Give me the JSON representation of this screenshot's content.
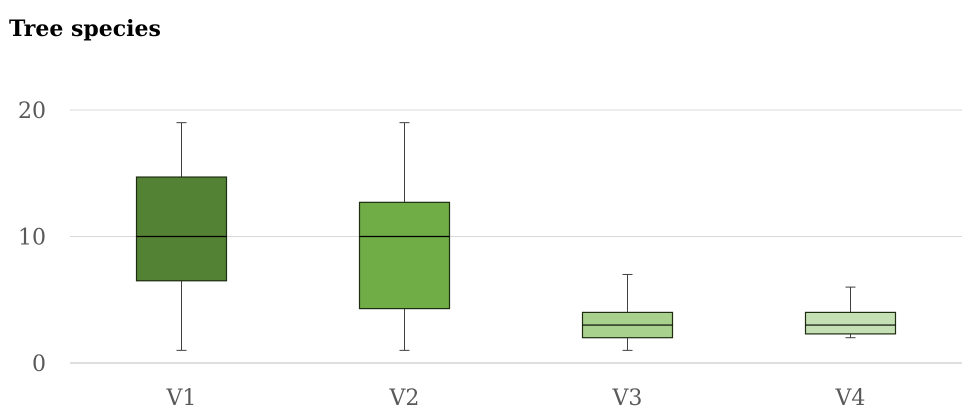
{
  "chart_data": {
    "type": "boxplot",
    "title": "Tree species",
    "xlabel": "",
    "ylabel": "",
    "ylim": [
      0,
      20
    ],
    "yticks": [
      0,
      10,
      20
    ],
    "grid": true,
    "legend": "none",
    "categories": [
      "V1",
      "V2",
      "V3",
      "V4"
    ],
    "boxes": [
      {
        "category": "V1",
        "min": 1,
        "q1": 6.5,
        "median": 10,
        "q3": 14.7,
        "max": 19,
        "color": "#548235"
      },
      {
        "category": "V2",
        "min": 1,
        "q1": 4.3,
        "median": 10,
        "q3": 12.7,
        "max": 19,
        "color": "#70ad47"
      },
      {
        "category": "V3",
        "min": 1,
        "q1": 2,
        "median": 3,
        "q3": 4,
        "max": 7,
        "color": "#a9d18e"
      },
      {
        "category": "V4",
        "min": 2,
        "q1": 2.3,
        "median": 3,
        "q3": 4,
        "max": 6,
        "color": "#c5e0b4"
      }
    ]
  }
}
